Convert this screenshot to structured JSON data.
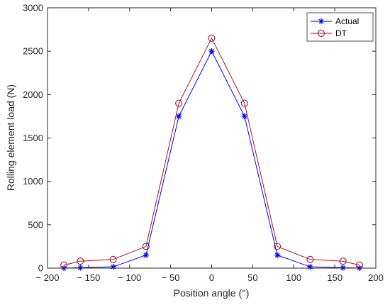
{
  "chart_data": {
    "type": "line",
    "title": "",
    "xlabel": "Position angle (°)",
    "ylabel": "Rolling element load (N)",
    "xlim": [
      -200,
      200
    ],
    "ylim": [
      0,
      3000
    ],
    "x_ticks": [
      -200,
      -150,
      -100,
      -50,
      0,
      50,
      100,
      150,
      200
    ],
    "x_tick_labels": [
      "− 200",
      "− 150",
      "− 100",
      "− 50",
      "0",
      "50",
      "100",
      "150",
      "200"
    ],
    "y_ticks": [
      0,
      500,
      1000,
      1500,
      2000,
      2500,
      3000
    ],
    "y_tick_labels": [
      "0",
      "500",
      "1000",
      "1500",
      "2000",
      "2500",
      "3000"
    ],
    "grid": false,
    "legend": {
      "position": "top-right"
    },
    "x": [
      -180,
      -160,
      -120,
      -80,
      -40,
      0,
      40,
      80,
      120,
      160,
      180
    ],
    "series": [
      {
        "name": "Actual",
        "color": "#0000ff",
        "marker": "asterisk",
        "values": [
          0,
          5,
          15,
          150,
          1750,
          2500,
          1750,
          150,
          15,
          5,
          0
        ]
      },
      {
        "name": "DT",
        "color": "#a2142f",
        "marker": "circle",
        "values": [
          35,
          80,
          100,
          250,
          1900,
          2650,
          1900,
          250,
          100,
          80,
          35
        ]
      }
    ]
  }
}
